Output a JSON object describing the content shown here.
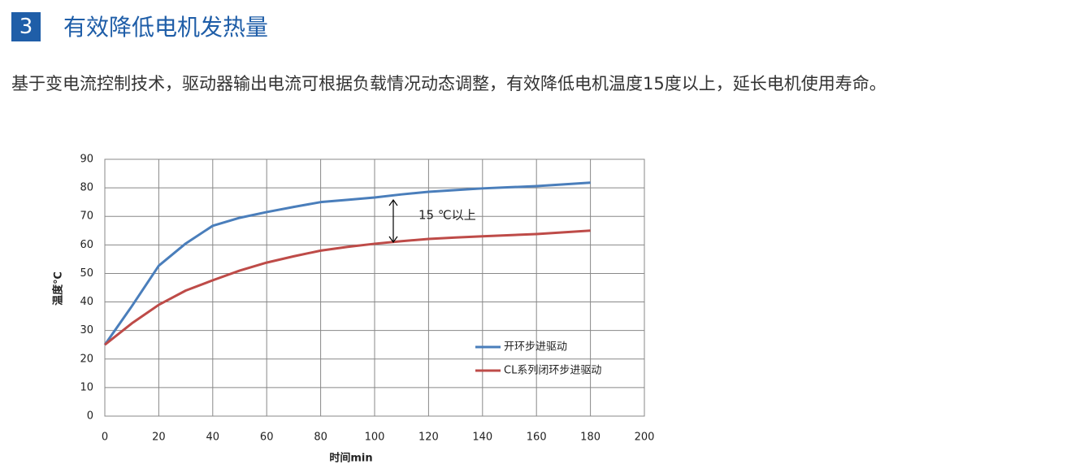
{
  "header": {
    "number": "3",
    "title": "有效降低电机发热量"
  },
  "intro": "基于变电流控制技术，驱动器输出电流可根据负载情况动态调整，有效降低电机温度15度以上，延长电机使用寿命。",
  "chart_data": {
    "type": "line",
    "x": [
      0,
      10,
      20,
      30,
      40,
      50,
      60,
      70,
      80,
      90,
      100,
      110,
      120,
      130,
      140,
      150,
      160,
      170,
      180
    ],
    "series": [
      {
        "name": "开环步进驱动",
        "color": "#4a7ebb",
        "values": [
          25,
          38.5,
          52.7,
          60.5,
          66.7,
          69.5,
          71.5,
          73.3,
          75,
          75.8,
          76.6,
          77.7,
          78.6,
          79.2,
          79.8,
          80.2,
          80.6,
          81.2,
          81.8
        ]
      },
      {
        "name": "CL系列闭环步进驱动",
        "color": "#be4b48",
        "values": [
          25,
          32.5,
          39,
          44,
          47.6,
          51,
          53.8,
          56,
          58,
          59.3,
          60.4,
          61.3,
          62.1,
          62.6,
          63,
          63.4,
          63.8,
          64.4,
          65
        ]
      }
    ],
    "xlabel": "时间min",
    "ylabel": "温度℃",
    "annotation": "15 ℃以上",
    "xlim": [
      0,
      200
    ],
    "xticks": [
      0,
      20,
      40,
      60,
      80,
      100,
      120,
      140,
      160,
      180,
      200
    ],
    "ylim": [
      0,
      90
    ],
    "yticks": [
      0,
      10,
      20,
      30,
      40,
      50,
      60,
      70,
      80,
      90
    ],
    "grid": true,
    "legend": "lower right"
  }
}
